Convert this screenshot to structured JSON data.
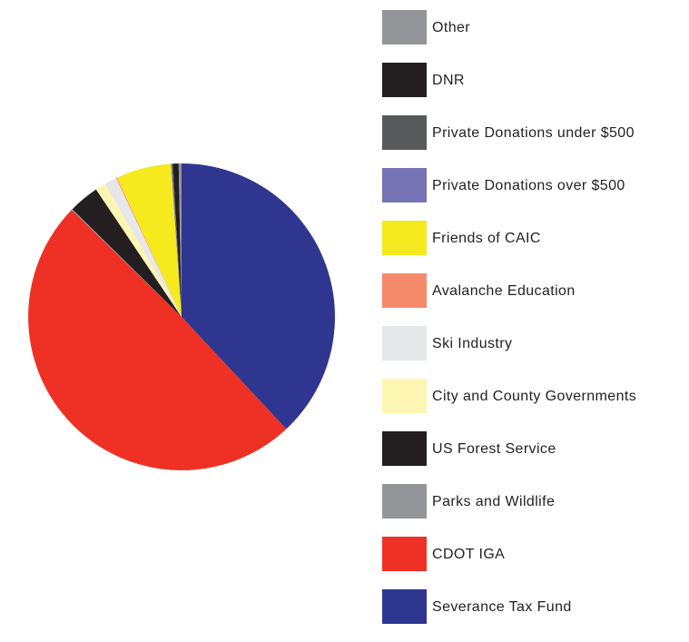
{
  "chart_data": {
    "type": "pie",
    "legend_placement": "right",
    "slices": [
      {
        "label": "Other",
        "value": 0.3,
        "color": "#939598"
      },
      {
        "label": "DNR",
        "value": 0.6,
        "color": "#231f20"
      },
      {
        "label": "Private Donations under $500",
        "value": 0.1,
        "color": "#58595b"
      },
      {
        "label": "Private Donations over $500",
        "value": 0.1,
        "color": "#7674b5"
      },
      {
        "label": "Friends of CAIC",
        "value": 5.8,
        "color": "#f5ea1e"
      },
      {
        "label": "Avalanche Education",
        "value": 0.1,
        "color": "#f58a6b"
      },
      {
        "label": "Ski Industry",
        "value": 1.3,
        "color": "#e6e7e8"
      },
      {
        "label": "City and County Governments",
        "value": 1.1,
        "color": "#fdf6b2"
      },
      {
        "label": "US Forest Service",
        "value": 3.2,
        "color": "#231f20"
      },
      {
        "label": "Parks and Wildlife",
        "value": 0.1,
        "color": "#939598"
      },
      {
        "label": "CDOT IGA",
        "value": 49.2,
        "color": "#ee3124"
      },
      {
        "label": "Severance Tax Fund",
        "value": 38.0,
        "color": "#2e3690"
      }
    ]
  }
}
